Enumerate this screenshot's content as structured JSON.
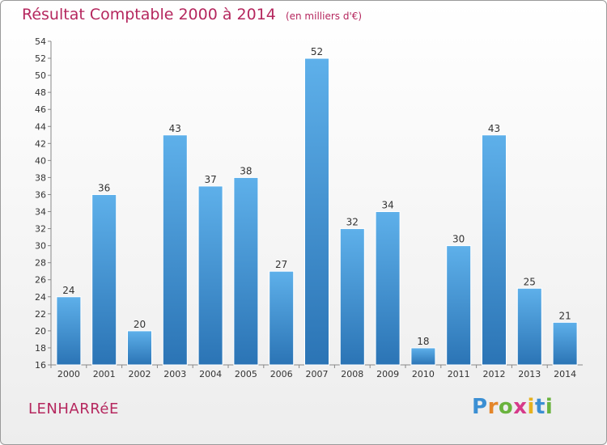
{
  "header": {
    "title": "Résultat Comptable 2000 à 2014",
    "subtitle": "(en milliers d'€)"
  },
  "footer": {
    "place": "LENHARRéE",
    "logo_letters": [
      "P",
      "r",
      "o",
      "x",
      "i",
      "t",
      "i"
    ]
  },
  "colors": {
    "bar_top": "#5eb0ea",
    "bar_bottom": "#2b74b5",
    "title": "#b5275e"
  },
  "chart_data": {
    "type": "bar",
    "title": "Résultat Comptable 2000 à 2014",
    "subtitle": "(en milliers d'€)",
    "xlabel": "",
    "ylabel": "",
    "ylim": [
      16,
      54
    ],
    "ytick_step": 2,
    "grid": false,
    "categories": [
      "2000",
      "2001",
      "2002",
      "2003",
      "2004",
      "2005",
      "2006",
      "2007",
      "2008",
      "2009",
      "2010",
      "2011",
      "2012",
      "2013",
      "2014"
    ],
    "values": [
      24,
      36,
      20,
      43,
      37,
      38,
      27,
      52,
      32,
      34,
      18,
      30,
      43,
      25,
      21
    ]
  }
}
